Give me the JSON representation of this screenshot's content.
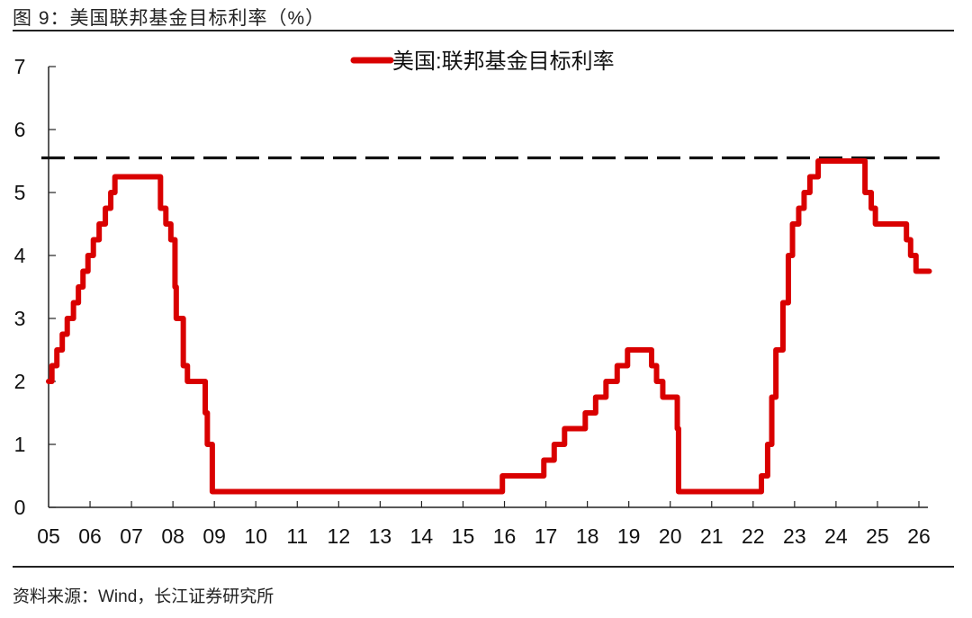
{
  "figure": {
    "title": "图 9：美国联邦基金目标利率（%）",
    "source": "资料来源：Wind，长江证券研究所"
  },
  "colors": {
    "series": "#d90000",
    "reference_line": "#111111",
    "axis": "#222222"
  },
  "chart_data": {
    "type": "line",
    "title": "美国联邦基金目标利率（%）",
    "xlabel": "",
    "ylabel": "",
    "ylim": [
      0,
      7
    ],
    "yticks": [
      0,
      1,
      2,
      3,
      4,
      5,
      6,
      7
    ],
    "xlim": [
      2005,
      2026.2
    ],
    "xticks": [
      "05",
      "06",
      "07",
      "08",
      "09",
      "10",
      "11",
      "12",
      "13",
      "14",
      "15",
      "16",
      "17",
      "18",
      "19",
      "20",
      "21",
      "22",
      "23",
      "24",
      "25",
      "26"
    ],
    "grid": false,
    "legend_position": "top-center",
    "reference_line": {
      "y": 5.55,
      "style": "dashed",
      "label": ""
    },
    "series": [
      {
        "name": "美国:联邦基金目标利率",
        "step": true,
        "points": [
          [
            2005.0,
            2.0
          ],
          [
            2005.08,
            2.25
          ],
          [
            2005.2,
            2.5
          ],
          [
            2005.33,
            2.75
          ],
          [
            2005.45,
            3.0
          ],
          [
            2005.6,
            3.25
          ],
          [
            2005.72,
            3.5
          ],
          [
            2005.83,
            3.75
          ],
          [
            2005.95,
            4.0
          ],
          [
            2006.08,
            4.25
          ],
          [
            2006.22,
            4.5
          ],
          [
            2006.37,
            4.75
          ],
          [
            2006.5,
            5.0
          ],
          [
            2006.6,
            5.25
          ],
          [
            2007.7,
            4.75
          ],
          [
            2007.83,
            4.5
          ],
          [
            2007.95,
            4.25
          ],
          [
            2008.05,
            3.5
          ],
          [
            2008.08,
            3.0
          ],
          [
            2008.25,
            2.25
          ],
          [
            2008.35,
            2.0
          ],
          [
            2008.78,
            1.5
          ],
          [
            2008.83,
            1.0
          ],
          [
            2008.95,
            0.25
          ],
          [
            2015.95,
            0.5
          ],
          [
            2016.95,
            0.75
          ],
          [
            2017.2,
            1.0
          ],
          [
            2017.45,
            1.25
          ],
          [
            2017.95,
            1.5
          ],
          [
            2018.2,
            1.75
          ],
          [
            2018.45,
            2.0
          ],
          [
            2018.72,
            2.25
          ],
          [
            2018.97,
            2.5
          ],
          [
            2019.55,
            2.25
          ],
          [
            2019.67,
            2.0
          ],
          [
            2019.82,
            1.75
          ],
          [
            2020.17,
            1.25
          ],
          [
            2020.2,
            0.25
          ],
          [
            2022.2,
            0.5
          ],
          [
            2022.35,
            1.0
          ],
          [
            2022.45,
            1.75
          ],
          [
            2022.55,
            2.5
          ],
          [
            2022.72,
            3.25
          ],
          [
            2022.85,
            4.0
          ],
          [
            2022.95,
            4.5
          ],
          [
            2023.1,
            4.75
          ],
          [
            2023.23,
            5.0
          ],
          [
            2023.37,
            5.25
          ],
          [
            2023.57,
            5.5
          ],
          [
            2024.7,
            5.0
          ],
          [
            2024.85,
            4.75
          ],
          [
            2024.95,
            4.5
          ],
          [
            2025.7,
            4.25
          ],
          [
            2025.8,
            4.0
          ],
          [
            2025.93,
            3.75
          ],
          [
            2026.25,
            3.75
          ]
        ]
      }
    ]
  },
  "legend": {
    "items": [
      {
        "label": "美国:联邦基金目标利率",
        "color": "#d90000"
      }
    ]
  }
}
